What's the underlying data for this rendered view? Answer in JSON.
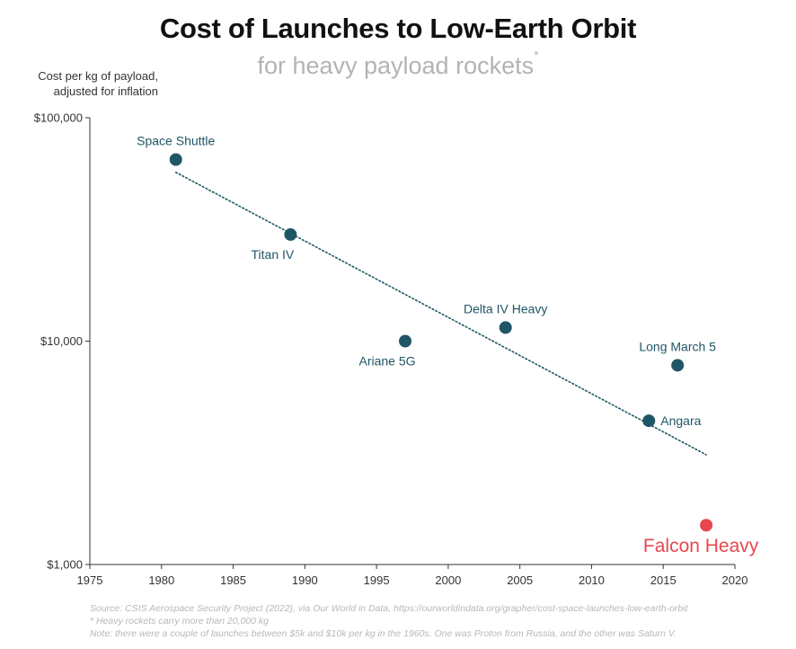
{
  "title": "Cost of Launches to Low-Earth Orbit",
  "subtitle": "for heavy payload rockets",
  "subtitle_mark": "*",
  "footer": {
    "source": "Source: CSIS Aerospace Security Project (2022), via Our World in Data, https://ourworldindata.org/grapher/cost-space-launches-low-earth-orbit",
    "note1": "* Heavy rockets carry more than 20,000 kg",
    "note2": "Note: there were a couple of launches between $5k and $10k per kg in the 1960s. One was Proton from Russia, and the other was Saturn V."
  },
  "colors": {
    "point": "#1f5666",
    "highlight": "#e8474f",
    "trend": "#1f5666",
    "axis": "#333333"
  },
  "chart_data": {
    "type": "scatter",
    "title": "Cost of Launches to Low-Earth Orbit",
    "subtitle": "for heavy payload rockets",
    "ylabel": "Cost per kg of payload, adjusted for inflation",
    "xlabel": "",
    "xlim": [
      1975,
      2020
    ],
    "ylim": [
      1000,
      100000
    ],
    "y_scale": "log",
    "grid": false,
    "x_ticks": [
      "1975",
      "1980",
      "1985",
      "1990",
      "1995",
      "2000",
      "2005",
      "2010",
      "2015",
      "2020"
    ],
    "y_ticks": [
      {
        "value": 100000,
        "label": "$100,000"
      },
      {
        "value": 10000,
        "label": "$10,000"
      },
      {
        "value": 1000,
        "label": "$1,000"
      }
    ],
    "points": [
      {
        "label": "Space Shuttle",
        "x": 1981,
        "y": 65000,
        "label_pos": "above",
        "highlight": false
      },
      {
        "label": "Titan IV",
        "x": 1989,
        "y": 30000,
        "label_pos": "below-left",
        "highlight": false
      },
      {
        "label": "Ariane 5G",
        "x": 1997,
        "y": 10000,
        "label_pos": "below-left",
        "highlight": false
      },
      {
        "label": "Delta IV Heavy",
        "x": 2004,
        "y": 11500,
        "label_pos": "above",
        "highlight": false
      },
      {
        "label": "Long March 5",
        "x": 2016,
        "y": 7800,
        "label_pos": "above",
        "highlight": false
      },
      {
        "label": "Angara",
        "x": 2014,
        "y": 4400,
        "label_pos": "right",
        "highlight": false
      },
      {
        "label": "Falcon Heavy",
        "x": 2018,
        "y": 1500,
        "label_pos": "below-left",
        "highlight": true
      }
    ],
    "trendline": {
      "style": "dotted",
      "x": [
        1981,
        2018
      ],
      "y": [
        57000,
        3100
      ]
    }
  }
}
